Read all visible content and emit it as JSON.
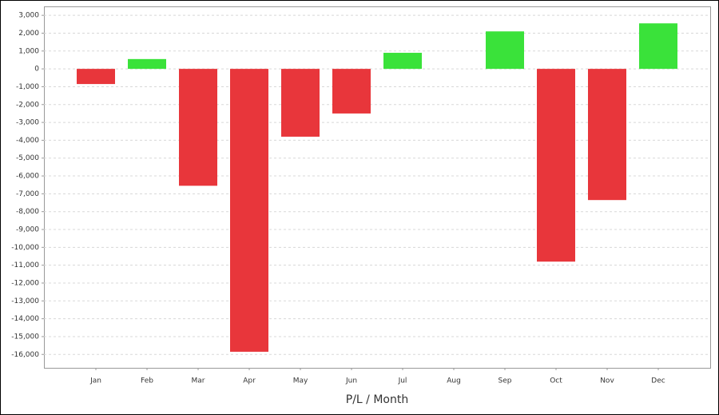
{
  "chart_data": {
    "type": "bar",
    "x_label": "P/L / Month",
    "categories": [
      "Jan",
      "Feb",
      "Mar",
      "Apr",
      "May",
      "Jun",
      "Jul",
      "Aug",
      "Sep",
      "Oct",
      "Nov",
      "Dec"
    ],
    "values": [
      -850,
      550,
      -6550,
      -15850,
      -3800,
      -2500,
      900,
      0,
      2100,
      -10800,
      -7350,
      2550
    ],
    "positive_color": "#3ae23a",
    "negative_color": "#e8363b",
    "ylim": [
      -16750,
      3500
    ],
    "yticks": [
      {
        "value": 3000,
        "label": "3,000"
      },
      {
        "value": 2000,
        "label": "2,000"
      },
      {
        "value": 1000,
        "label": "1,000"
      },
      0,
      {
        "value": -1000,
        "label": "-1,000"
      },
      {
        "value": -2000,
        "label": "-2,000"
      },
      {
        "value": -3000,
        "label": "-3,000"
      },
      {
        "value": -4000,
        "label": "-4,000"
      },
      {
        "value": -5000,
        "label": "-5,000"
      },
      {
        "value": -6000,
        "label": "-6,000"
      },
      {
        "value": -7000,
        "label": "-7,000"
      },
      {
        "value": -8000,
        "label": "-8,000"
      },
      {
        "value": -9000,
        "label": "-9,000"
      },
      {
        "value": -10000,
        "label": "-10,000"
      },
      {
        "value": -11000,
        "label": "-11,000"
      },
      {
        "value": -12000,
        "label": "-12,000"
      },
      {
        "value": -13000,
        "label": "-13,000"
      },
      {
        "value": -14000,
        "label": "-14,000"
      },
      {
        "value": -15000,
        "label": "-15,000"
      },
      {
        "value": -16000,
        "label": "-16,000"
      }
    ],
    "grid": true
  }
}
